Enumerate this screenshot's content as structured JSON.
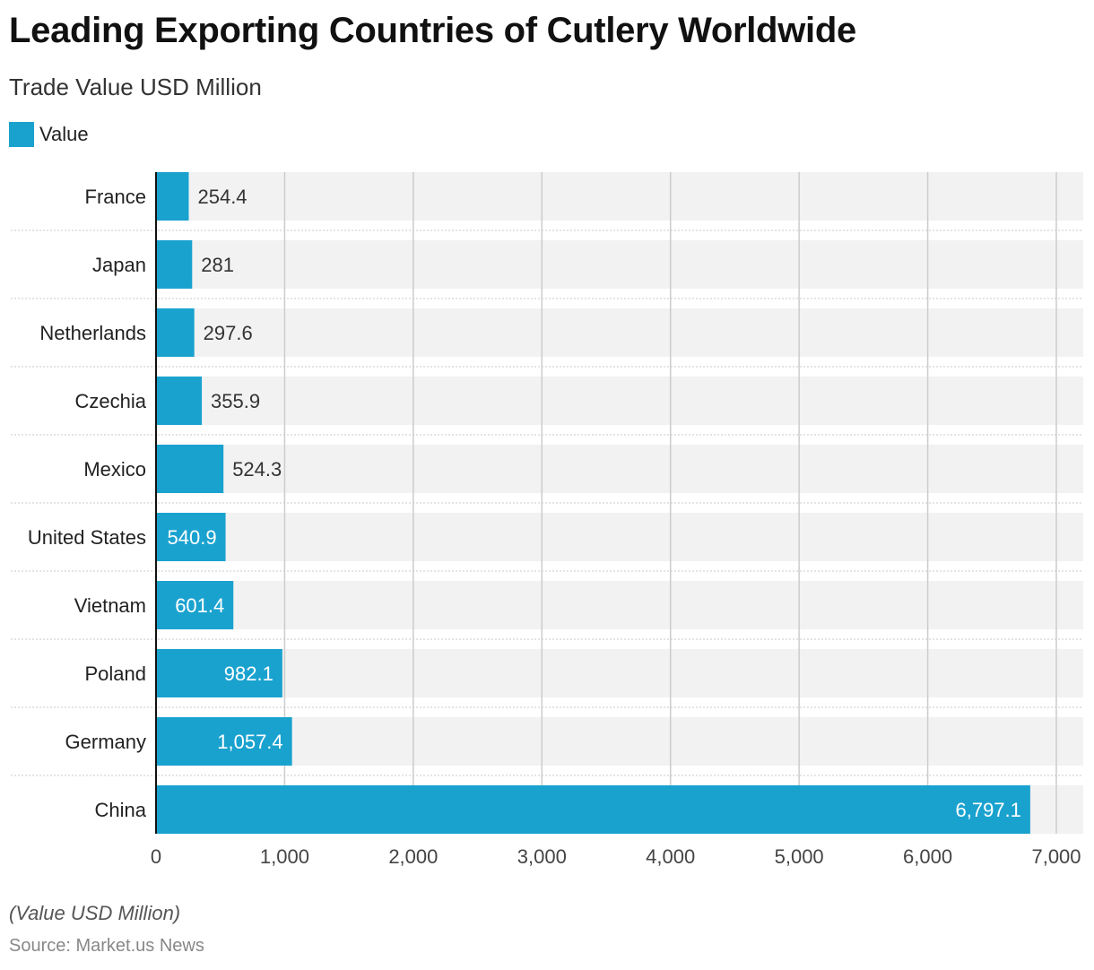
{
  "colors": {
    "bar": "#1aa2cf",
    "band": "#f2f2f2",
    "grid": "#cccccc",
    "text": "#222222"
  },
  "header": {
    "title": "Leading Exporting Countries of Cutlery Worldwide",
    "subtitle": "Trade Value USD Million"
  },
  "legend": {
    "label": "Value"
  },
  "footer": {
    "note": "(Value USD Million)",
    "source": "Source: Market.us News"
  },
  "chart_data": {
    "type": "bar",
    "orientation": "horizontal",
    "categories": [
      "France",
      "Japan",
      "Netherlands",
      "Czechia",
      "Mexico",
      "United States",
      "Vietnam",
      "Poland",
      "Germany",
      "China"
    ],
    "series": [
      {
        "name": "Value",
        "values": [
          254.4,
          281,
          297.6,
          355.9,
          524.3,
          540.9,
          601.4,
          982.1,
          1057.4,
          6797.1
        ]
      }
    ],
    "value_labels": [
      "254.4",
      "281",
      "297.6",
      "355.9",
      "524.3",
      "540.9",
      "601.4",
      "982.1",
      "1,057.4",
      "6,797.1"
    ],
    "xlim": [
      0,
      7000
    ],
    "xticks": [
      0,
      1000,
      2000,
      3000,
      4000,
      5000,
      6000,
      7000
    ],
    "xtick_labels": [
      "0",
      "1,000",
      "2,000",
      "3,000",
      "4,000",
      "5,000",
      "6,000",
      "7,000"
    ],
    "grid": true,
    "legend_position": "top-left"
  }
}
